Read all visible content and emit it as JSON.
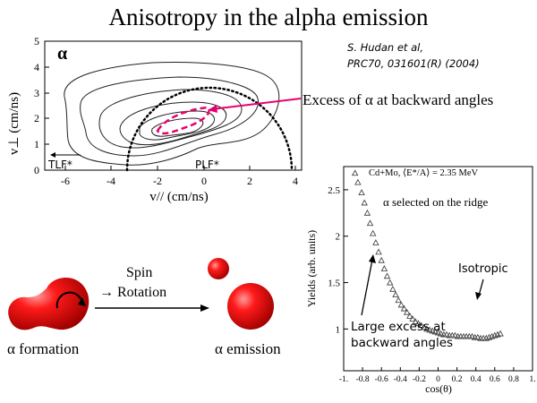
{
  "title": "Anisotropy in the alpha emission",
  "reference": {
    "line1": "S. Hudan et al,",
    "line2": "PRC70, 031601(R) (2004)"
  },
  "annotation_excess": "Excess of α at backward angles",
  "contour_plot": {
    "alpha_label": "α",
    "ylabel": "v⊥ (cm/ns)",
    "xlabel": "v// (cm/ns)",
    "x_ticks": [
      "-6",
      "-4",
      "-2",
      "0",
      "2",
      "4"
    ],
    "y_ticks": [
      "0",
      "1",
      "2",
      "3",
      "4",
      "5"
    ],
    "tlf_label": "TLF*",
    "plf_label": "PLF*",
    "contour_color": "#222222",
    "circle_color": "#000000",
    "highlight_color": "#e8006e"
  },
  "mechanism": {
    "spin_label": "Spin",
    "rotation_label": "→ Rotation",
    "formation_label": "α formation",
    "emission_label": "α emission",
    "drop_color": "#dd0000"
  },
  "chart_data": {
    "type": "scatter",
    "legend": "Cd+Mo, ⟨E*/A⟩ = 2.35 MeV",
    "subtitle": "α selected on the ridge",
    "xlabel": "cos(θ)",
    "ylabel": "Yields (arb. units)",
    "xlim": [
      -1,
      1
    ],
    "ylim": [
      0.55,
      2.75
    ],
    "x_ticks": [
      "-1.",
      "-0.8",
      "-0.6",
      "-0.4",
      "-0.2",
      "0",
      "0.2",
      "0.4",
      "0.6",
      "0.8",
      "1."
    ],
    "y_ticks": [
      "1",
      "1.5",
      "2",
      "2.5"
    ],
    "annotation_isotropic": "Isotropic",
    "annotation_excess_line1": "Large excess at",
    "annotation_excess_line2": "backward angles",
    "marker": "open-triangle",
    "x": [
      -0.88,
      -0.85,
      -0.81,
      -0.78,
      -0.75,
      -0.72,
      -0.69,
      -0.66,
      -0.63,
      -0.6,
      -0.57,
      -0.54,
      -0.51,
      -0.48,
      -0.45,
      -0.42,
      -0.39,
      -0.36,
      -0.33,
      -0.3,
      -0.27,
      -0.24,
      -0.21,
      -0.18,
      -0.15,
      -0.12,
      -0.09,
      -0.06,
      -0.03,
      0.0,
      0.03,
      0.06,
      0.09,
      0.12,
      0.15,
      0.18,
      0.21,
      0.24,
      0.27,
      0.3,
      0.33,
      0.36,
      0.39,
      0.42,
      0.45,
      0.48,
      0.51,
      0.54,
      0.57,
      0.6,
      0.63,
      0.66
    ],
    "y": [
      2.68,
      2.58,
      2.47,
      2.36,
      2.25,
      2.14,
      2.03,
      1.93,
      1.83,
      1.74,
      1.65,
      1.57,
      1.5,
      1.43,
      1.37,
      1.31,
      1.26,
      1.22,
      1.18,
      1.14,
      1.11,
      1.08,
      1.06,
      1.04,
      1.02,
      1.0,
      0.99,
      0.98,
      0.97,
      0.96,
      0.95,
      0.94,
      0.94,
      0.93,
      0.93,
      0.93,
      0.92,
      0.92,
      0.92,
      0.92,
      0.92,
      0.92,
      0.91,
      0.91,
      0.9,
      0.9,
      0.9,
      0.91,
      0.92,
      0.93,
      0.94,
      0.95
    ]
  }
}
